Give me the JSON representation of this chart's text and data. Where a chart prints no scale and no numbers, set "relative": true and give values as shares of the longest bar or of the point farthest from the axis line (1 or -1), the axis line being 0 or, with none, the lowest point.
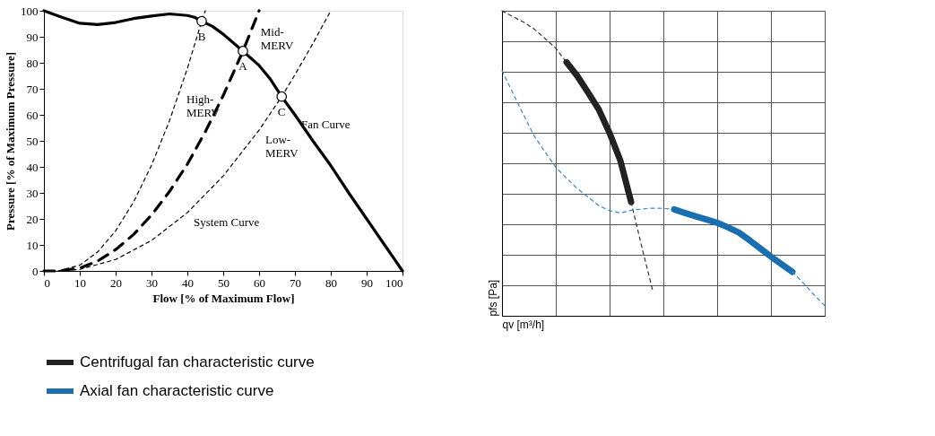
{
  "chart_data": [
    {
      "type": "line",
      "xlabel": "Flow [% of Maximum Flow]",
      "ylabel": "Pressure [% of Maximum Pressure]",
      "xlim": [
        0,
        100
      ],
      "ylim": [
        0,
        100
      ],
      "xticks": [
        0,
        10,
        20,
        30,
        40,
        50,
        60,
        70,
        80,
        90,
        100
      ],
      "yticks": [
        0,
        10,
        20,
        30,
        40,
        50,
        60,
        70,
        80,
        90,
        100
      ],
      "grid": false,
      "legend": false,
      "series": [
        {
          "color": "#000000",
          "line_style": "solid",
          "x": [
            0,
            5,
            10,
            15,
            20,
            25,
            30,
            35,
            40,
            42,
            44,
            47,
            50,
            55.5,
            60,
            63,
            66.3,
            70,
            75,
            80,
            85,
            90,
            95,
            98,
            100
          ],
          "values": [
            100,
            97.5,
            95.2,
            94.7,
            95.5,
            97,
            98,
            98.8,
            98.2,
            97.5,
            96,
            94,
            91,
            84.5,
            79,
            74,
            67,
            60,
            50,
            40.5,
            30,
            20,
            10,
            4,
            0
          ]
        },
        {
          "color": "#000000",
          "line_style": "dotted",
          "x": [
            0,
            4,
            10,
            15,
            20,
            25,
            30,
            35,
            40,
            44,
            45
          ],
          "values": [
            0,
            0,
            2.2,
            7.3,
            15.4,
            26.5,
            40.6,
            57.7,
            77.8,
            96,
            100
          ]
        },
        {
          "color": "#000000",
          "line_style": "dashed",
          "x": [
            0,
            4,
            10,
            15,
            20,
            25,
            30,
            35,
            40,
            45,
            50,
            55.5,
            58.7,
            60
          ],
          "values": [
            0,
            0,
            1.1,
            3.8,
            8.2,
            14,
            21.5,
            30.5,
            41,
            53.5,
            67.4,
            84.5,
            95.5,
            100
          ]
        },
        {
          "color": "#000000",
          "line_style": "dotted",
          "x": [
            0,
            4,
            10,
            20,
            30,
            40,
            50,
            60,
            66.3,
            70,
            75,
            80
          ],
          "values": [
            0,
            0,
            0.6,
            4.4,
            11.7,
            22.4,
            36.5,
            54.1,
            67,
            75.4,
            87.4,
            100
          ]
        },
        {
          "type": "scatter",
          "marker": "circle",
          "color": "#000000",
          "x": [
            55.5,
            44,
            66.3
          ],
          "values": [
            84.5,
            96,
            67
          ]
        }
      ],
      "annotations": [
        {
          "text": "A",
          "x": 55.5,
          "y": 84.5
        },
        {
          "text": "B",
          "x": 44,
          "y": 96
        },
        {
          "text": "C",
          "x": 66.3,
          "y": 67
        },
        {
          "text": "Mid-\nMERV",
          "x": 58.7,
          "y": 95.5
        },
        {
          "text": "High-\nMERV",
          "x": 38,
          "y": 69.8
        },
        {
          "text": "Low-\nMERV",
          "x": 60,
          "y": 54.1
        },
        {
          "text": "System Curve",
          "x": 40,
          "y": 22.4
        },
        {
          "text": "Fan Curve",
          "x": 70,
          "y": 60
        }
      ]
    },
    {
      "type": "line",
      "relative": true,
      "xlabel": "qv [m³/h]",
      "ylabel": "pfs [Pa]",
      "categories": [
        null,
        null,
        null,
        null,
        null,
        null,
        null,
        null,
        null,
        null,
        null,
        null,
        null,
        null,
        null,
        null,
        null,
        null,
        null,
        null,
        null,
        null,
        null,
        null,
        null,
        null,
        null,
        null,
        null,
        null,
        null
      ],
      "tick_labels": false,
      "grid": true,
      "legend": "bottom",
      "series": [
        {
          "color": "#333333",
          "line_style": "dotted",
          "values": [
            1.0,
            0.981,
            0.963,
            0.94,
            0.909,
            0.877,
            0.831,
            null,
            null,
            null,
            null,
            null,
            null,
            null,
            null,
            null,
            null,
            null,
            null,
            null,
            null,
            null,
            null,
            null,
            null,
            null,
            null,
            null,
            null,
            null,
            null
          ]
        },
        {
          "name": "Centrifugal fan characteristic curve",
          "color": "#222222",
          "line_style": "solid",
          "values": [
            null,
            null,
            null,
            null,
            null,
            null,
            0.831,
            0.786,
            0.732,
            0.676,
            0.599,
            0.509,
            0.373,
            null,
            null,
            null,
            null,
            null,
            null,
            null,
            null,
            null,
            null,
            null,
            null,
            null,
            null,
            null,
            null,
            null,
            null
          ]
        },
        {
          "color": "#333333",
          "line_style": "dotted",
          "values": [
            null,
            null,
            null,
            null,
            null,
            null,
            null,
            null,
            null,
            null,
            null,
            null,
            0.373,
            0.225,
            0.084,
            null,
            null,
            null,
            null,
            null,
            null,
            null,
            null,
            null,
            null,
            null,
            null,
            null,
            null,
            null,
            null
          ]
        },
        {
          "color": "#3a86c8",
          "line_style": "dotted",
          "values": [
            0.804,
            0.731,
            0.659,
            0.589,
            0.537,
            0.487,
            0.451,
            0.417,
            0.389,
            0.361,
            0.345,
            0.337,
            0.346,
            0.35,
            0.353,
            0.352,
            0.349,
            null,
            null,
            null,
            null,
            null,
            null,
            null,
            null,
            null,
            null,
            null,
            null,
            null,
            null
          ]
        },
        {
          "name": "Axial fan characteristic curve",
          "color": "#1a6fb0",
          "line_style": "solid",
          "values": [
            null,
            null,
            null,
            null,
            null,
            null,
            null,
            null,
            null,
            null,
            null,
            null,
            null,
            null,
            null,
            null,
            0.349,
            0.337,
            0.326,
            0.316,
            0.305,
            0.29,
            0.273,
            0.248,
            0.221,
            0.194,
            0.169,
            0.144,
            null,
            null,
            null
          ]
        },
        {
          "color": "#3a86c8",
          "line_style": "dotted",
          "values": [
            null,
            null,
            null,
            null,
            null,
            null,
            null,
            null,
            null,
            null,
            null,
            null,
            null,
            null,
            null,
            null,
            null,
            null,
            null,
            null,
            null,
            null,
            null,
            null,
            null,
            null,
            null,
            0.144,
            0.108,
            0.069,
            0.033
          ]
        }
      ]
    }
  ]
}
